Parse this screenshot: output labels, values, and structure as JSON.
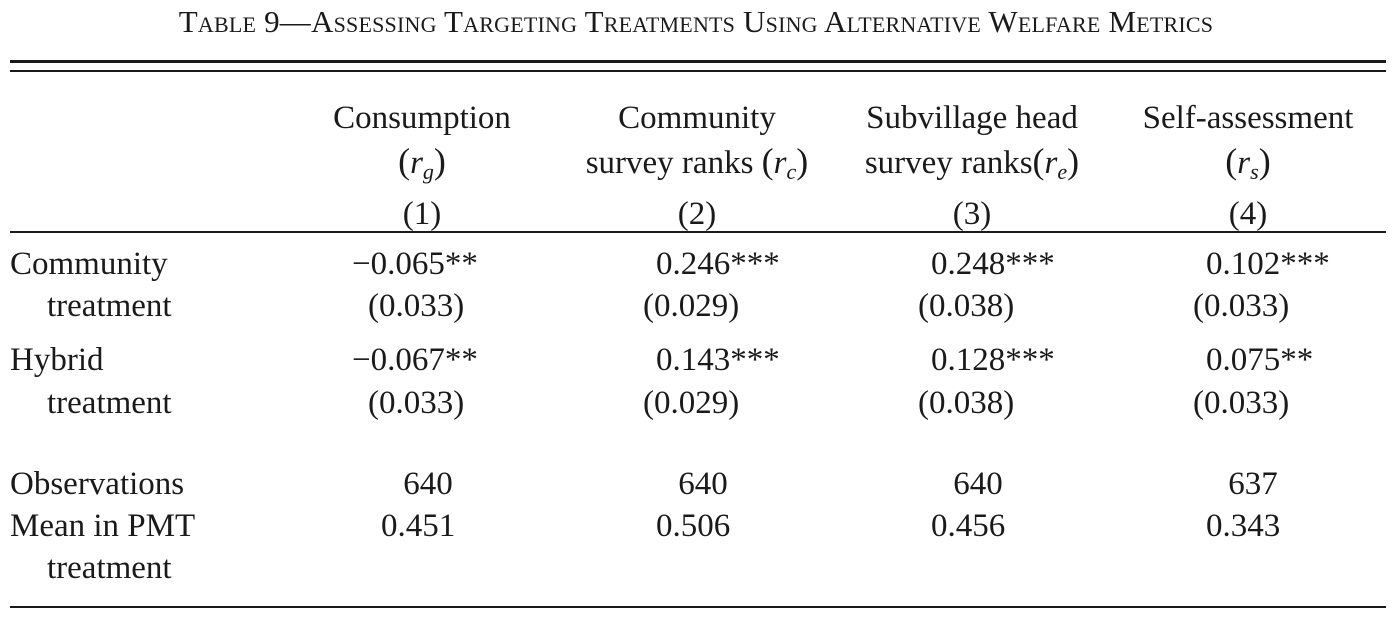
{
  "caption": "Table 9—Assessing Targeting Treatments Using Alternative Welfare Metrics",
  "columns": [
    {
      "line1": "Consumption",
      "line2_pre": "",
      "symbol": "r",
      "sub": "g",
      "number": "(1)"
    },
    {
      "line1": "Community",
      "line2_pre": "survey ranks ",
      "symbol": "r",
      "sub": "c",
      "number": "(2)"
    },
    {
      "line1": "Subvillage head",
      "line2_pre": "survey ranks",
      "symbol": "r",
      "sub": "e",
      "number": "(3)"
    },
    {
      "line1": "Self-assessment",
      "line2_pre": "",
      "symbol": "r",
      "sub": "s",
      "number": "(4)"
    }
  ],
  "rows": [
    {
      "label1": "Community",
      "label2": "treatment",
      "coef": [
        "−0.065**",
        "0.246***",
        "0.248***",
        "0.102***"
      ],
      "se": [
        "(0.033)",
        "(0.029)",
        "(0.038)",
        "(0.033)"
      ]
    },
    {
      "label1": "Hybrid",
      "label2": "treatment",
      "coef": [
        "−0.067**",
        "0.143***",
        "0.128***",
        "0.075**"
      ],
      "se": [
        "(0.033)",
        "(0.029)",
        "(0.038)",
        "(0.033)"
      ]
    }
  ],
  "observations": {
    "label": "Observations",
    "values": [
      "640",
      "640",
      "640",
      "637"
    ]
  },
  "mean_pmt": {
    "label1": "Mean in PMT",
    "label2": "treatment",
    "values": [
      "0.451",
      "0.506",
      "0.456",
      "0.343"
    ]
  }
}
